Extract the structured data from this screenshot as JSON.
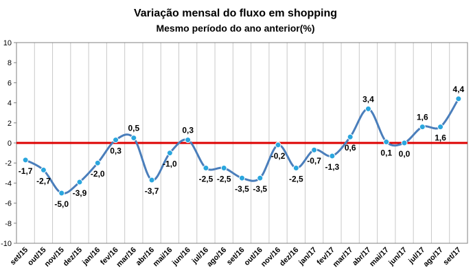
{
  "chart_data": {
    "type": "line",
    "title": "Variação mensal do fluxo em shopping",
    "subtitle": "Mesmo período do ano anterior(%)",
    "categories": [
      "set/15",
      "out/15",
      "nov/15",
      "dez/15",
      "jan/16",
      "fev/16",
      "mar/16",
      "abr/16",
      "mai/16",
      "jun/16",
      "jul/16",
      "ago/16",
      "set/16",
      "out/16",
      "nov/16",
      "dez/16",
      "jan/17",
      "fev/17",
      "mar/17",
      "abr/17",
      "mai/17",
      "jun/17",
      "jul/17",
      "ago/17",
      "set/17"
    ],
    "values": [
      -1.7,
      -2.7,
      -5.0,
      -3.9,
      -2.0,
      0.3,
      0.5,
      -3.7,
      -1.0,
      0.3,
      -2.5,
      -2.5,
      -3.5,
      -3.5,
      -0.2,
      -2.5,
      -0.7,
      -1.3,
      0.6,
      3.4,
      0.1,
      0.0,
      1.6,
      1.6,
      4.4
    ],
    "data_labels": [
      "-1,7",
      "-2,7",
      "-5,0",
      "-3,9",
      "-2,0",
      "0,3",
      "0,5",
      "-3,7",
      "-1,0",
      "0,3",
      "-2,5",
      "-2,5",
      "-3,5",
      "-3,5",
      "-0,2",
      "-2,5",
      "-0,7",
      "-1,3",
      "0,6",
      "3,4",
      "0,1",
      "0,0",
      "1,6",
      "1,6",
      "4,4"
    ],
    "yticks": [
      10,
      8,
      6,
      4,
      2,
      0,
      -2,
      -4,
      -6,
      -8,
      -10
    ],
    "ytick_labels": [
      "10",
      "8",
      "6",
      "4",
      "2",
      "0",
      "-2",
      "-4",
      "-6",
      "-8",
      "-10"
    ],
    "ylim": [
      -10,
      10
    ],
    "xlabel": "",
    "ylabel": "",
    "grid": "vertical",
    "legend": "none",
    "colors": {
      "line": "#4a7ebb",
      "marker": "#2aa6de",
      "zero_line": "#dd0000",
      "grid": "#c8c8c8",
      "axis": "#808080"
    }
  }
}
